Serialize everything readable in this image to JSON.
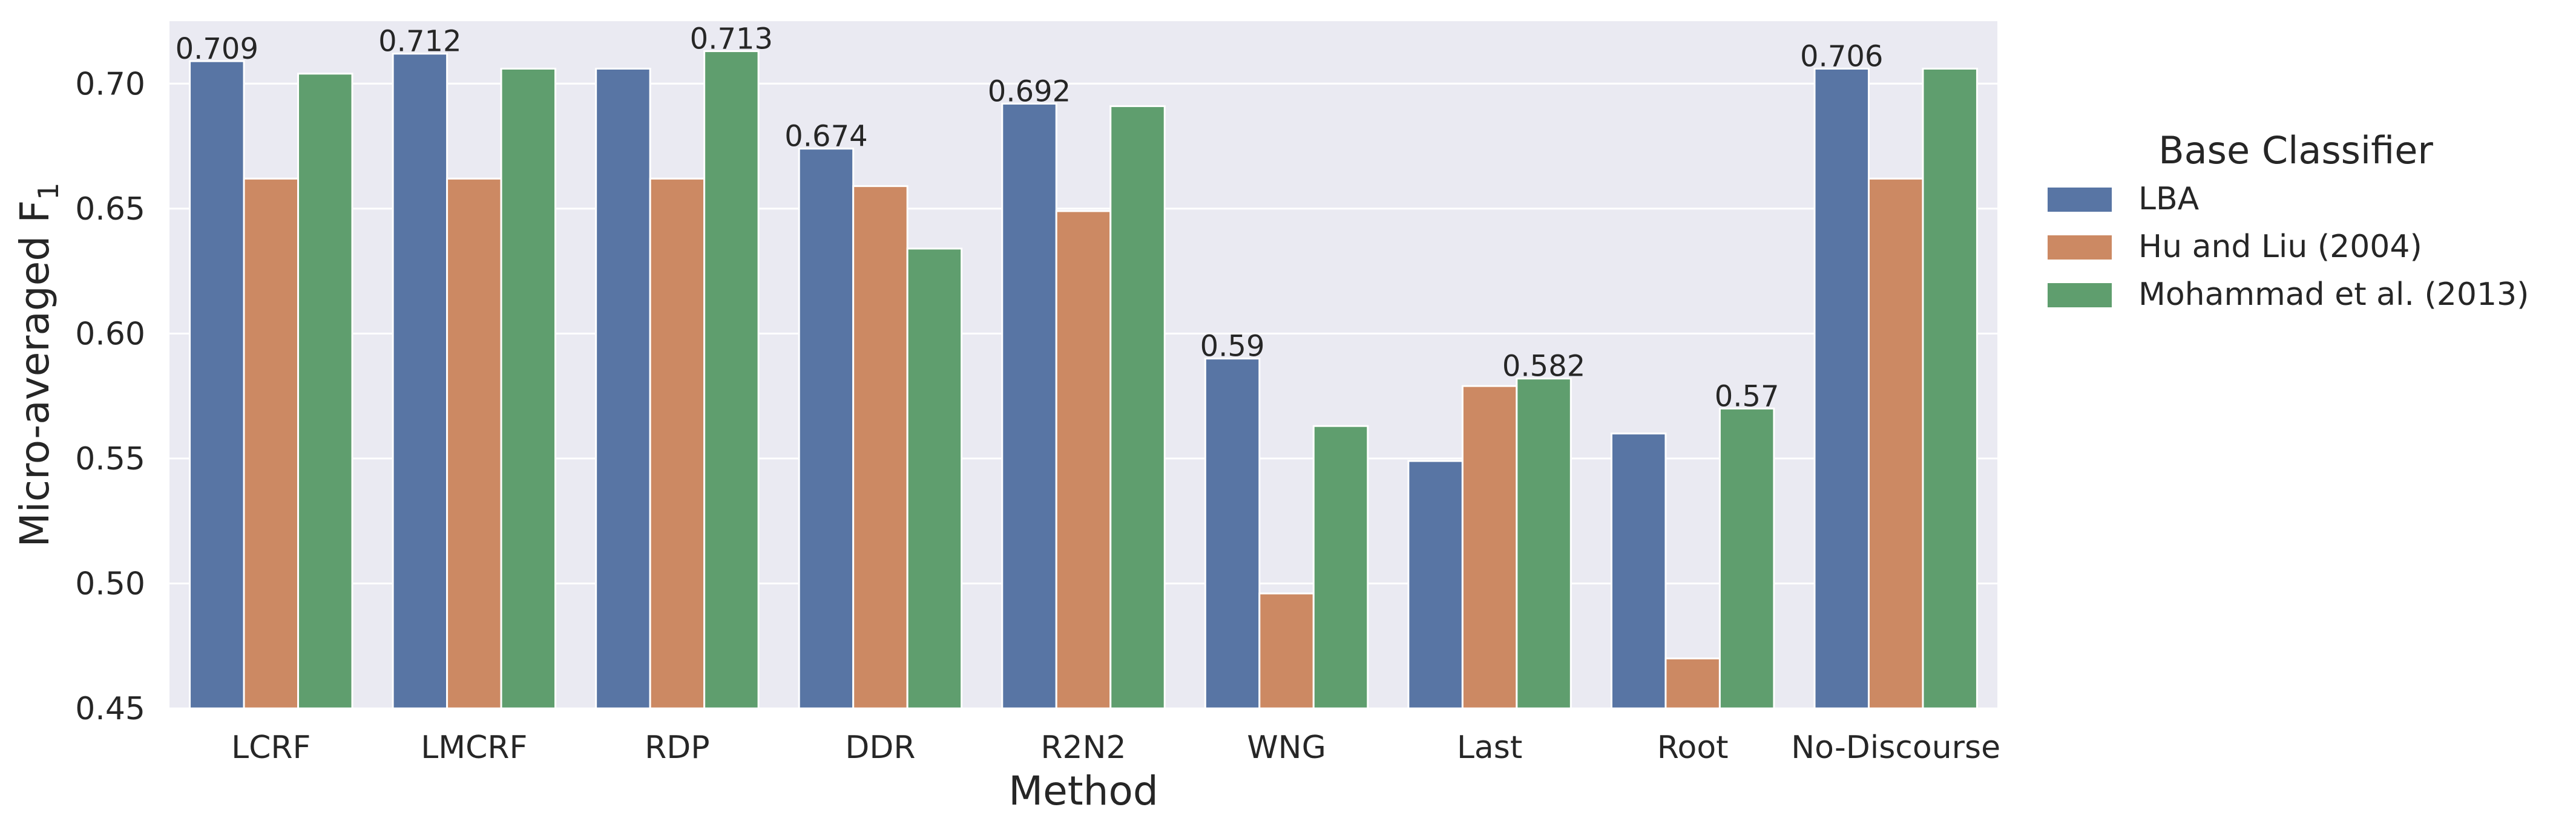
{
  "chart_data": {
    "type": "bar",
    "xlabel": "Method",
    "ylabel": "Micro-averaged F",
    "ylabel_subscript": "1",
    "ylim": [
      0.45,
      0.725
    ],
    "yticks": [
      "0.45",
      "0.50",
      "0.55",
      "0.60",
      "0.65",
      "0.70"
    ],
    "grid": true,
    "legend_title": "Base Classifier",
    "legend_position": "outside-right",
    "categories": [
      "LCRF",
      "LMCRF",
      "RDP",
      "DDR",
      "R2N2",
      "WNG",
      "Last",
      "Root",
      "No-Discourse"
    ],
    "series": [
      {
        "name": "LBA",
        "color": "#5875a4",
        "values": [
          0.709,
          0.712,
          0.706,
          0.674,
          0.692,
          0.59,
          0.549,
          0.56,
          0.706
        ]
      },
      {
        "name": "Hu and Liu (2004)",
        "color": "#cc8963",
        "values": [
          0.662,
          0.662,
          0.662,
          0.659,
          0.649,
          0.496,
          0.579,
          0.47,
          0.662
        ]
      },
      {
        "name": "Mohammad et al. (2013)",
        "color": "#5f9e6e",
        "values": [
          0.704,
          0.706,
          0.713,
          0.634,
          0.691,
          0.563,
          0.582,
          0.57,
          0.706
        ]
      }
    ],
    "annotations": [
      {
        "category": "LCRF",
        "series": "LBA",
        "text": "0.709"
      },
      {
        "category": "LMCRF",
        "series": "LBA",
        "text": "0.712"
      },
      {
        "category": "RDP",
        "series": "Mohammad et al. (2013)",
        "text": "0.713"
      },
      {
        "category": "DDR",
        "series": "LBA",
        "text": "0.674"
      },
      {
        "category": "R2N2",
        "series": "LBA",
        "text": "0.692"
      },
      {
        "category": "WNG",
        "series": "LBA",
        "text": "0.59"
      },
      {
        "category": "Last",
        "series": "Mohammad et al. (2013)",
        "text": "0.582"
      },
      {
        "category": "Root",
        "series": "Mohammad et al. (2013)",
        "text": "0.57"
      },
      {
        "category": "No-Discourse",
        "series": "LBA",
        "text": "0.706"
      }
    ],
    "colors": {
      "plot_bg": "#eaeaf2",
      "grid": "#ffffff",
      "text": "#262626"
    }
  }
}
